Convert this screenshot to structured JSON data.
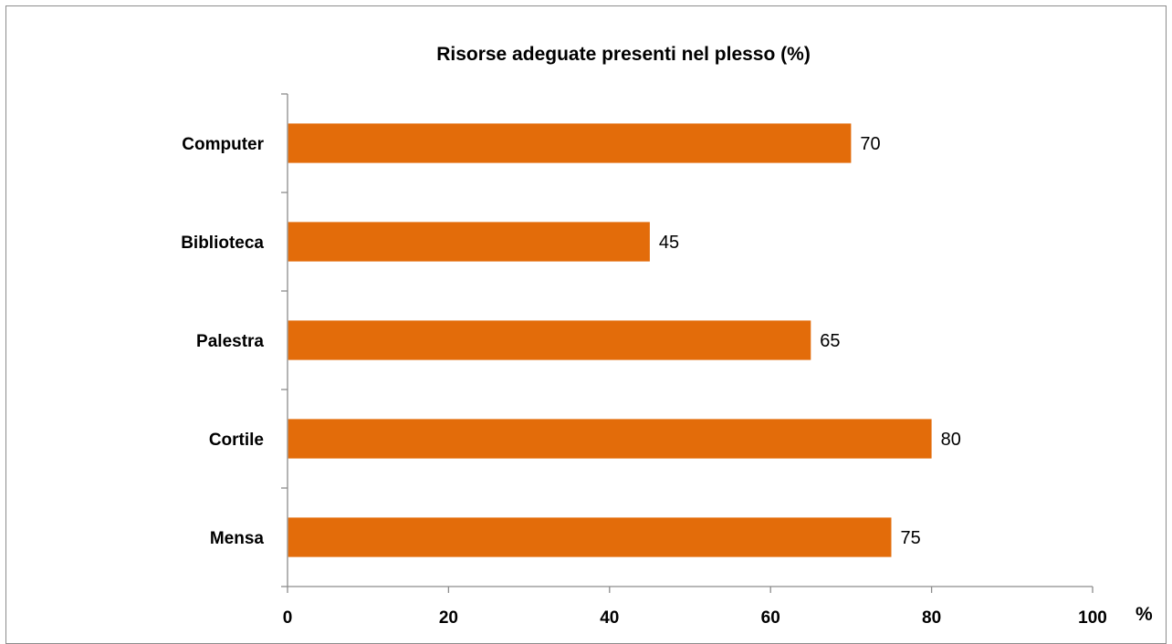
{
  "chart_data": {
    "type": "bar",
    "orientation": "horizontal",
    "title": "Risorse adeguate presenti nel plesso  (%)",
    "categories": [
      "Computer",
      "Biblioteca",
      "Palestra",
      "Cortile",
      "Mensa"
    ],
    "values": [
      70,
      45,
      65,
      80,
      75
    ],
    "data_labels": [
      "70",
      "45",
      "65",
      "80",
      "75"
    ],
    "xlim": [
      0,
      100
    ],
    "x_ticks": [
      0,
      20,
      40,
      60,
      80,
      100
    ],
    "x_tick_labels": [
      "0",
      "20",
      "40",
      "60",
      "80",
      "100"
    ],
    "x_unit_label": "%",
    "grid": false,
    "legend": "none",
    "bar_color": "#e36c0a",
    "axis_color": "#8c8c8c"
  }
}
